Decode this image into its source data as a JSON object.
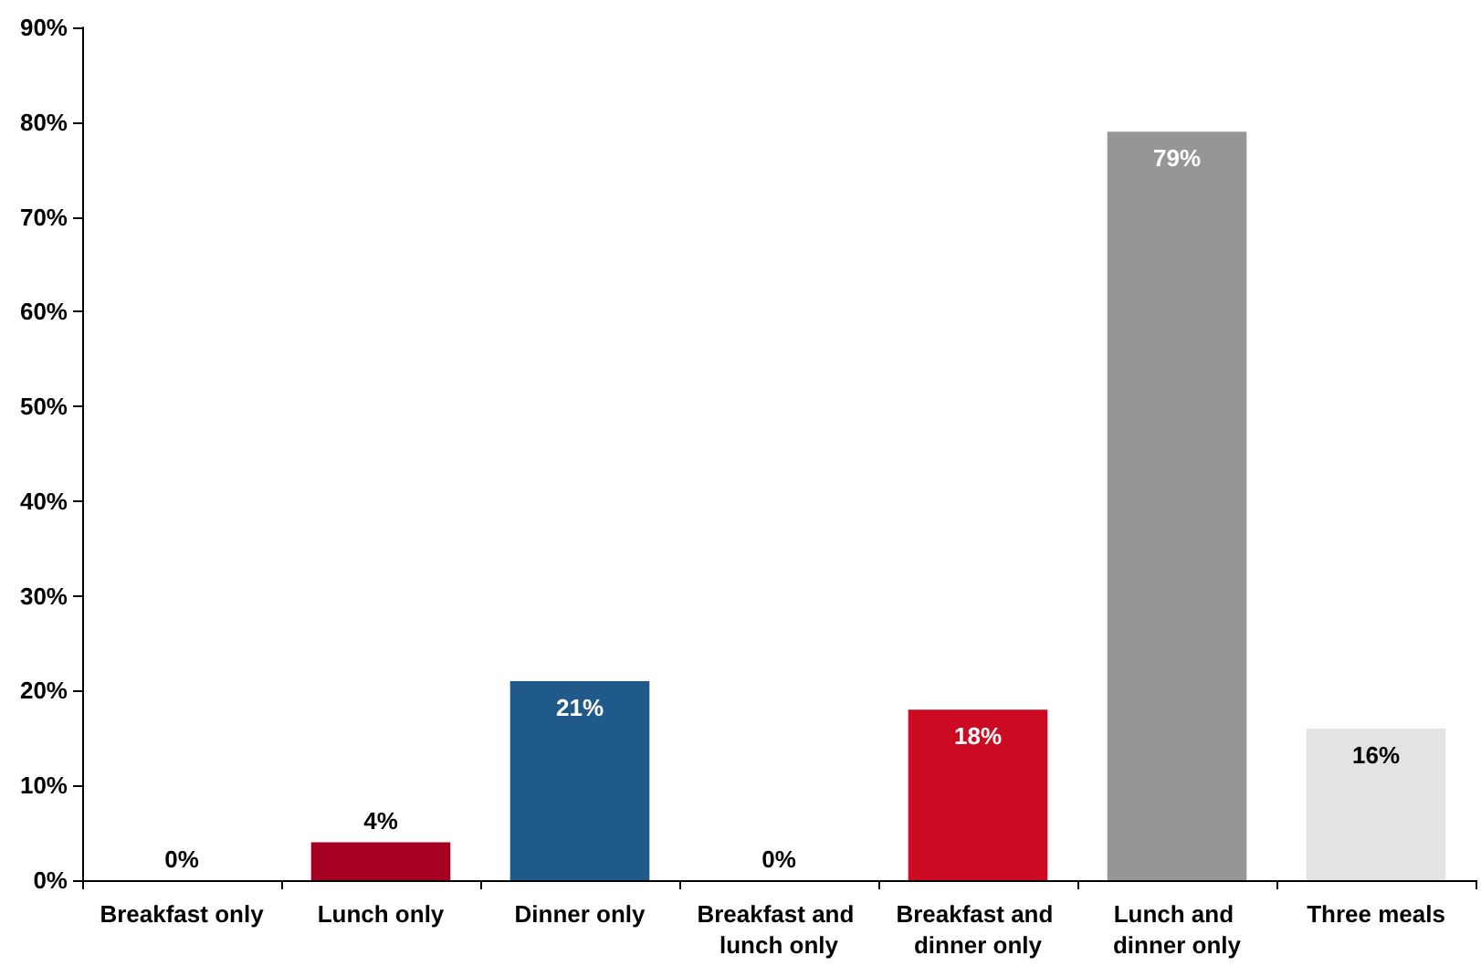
{
  "chart_data": {
    "type": "bar",
    "categories": [
      "Breakfast only",
      "Lunch only",
      "Dinner only",
      "Breakfast and lunch only",
      "Breakfast and dinner only",
      "Lunch and dinner only",
      "Three meals"
    ],
    "values": [
      0,
      4,
      21,
      0,
      18,
      79,
      16
    ],
    "colors": [
      "#000000",
      "#a50021",
      "#1f5a8a",
      "#000000",
      "#cc0a22",
      "#969696",
      "#e3e3e3"
    ],
    "value_labels": [
      "0%",
      "4%",
      "21%",
      "0%",
      "18%",
      "79%",
      "16%"
    ],
    "ylim": [
      0,
      90
    ],
    "yticks": [
      {
        "value": 0,
        "label": "0%"
      },
      {
        "value": 10,
        "label": "10%"
      },
      {
        "value": 20,
        "label": "20%"
      },
      {
        "value": 30,
        "label": "30%"
      },
      {
        "value": 40,
        "label": "40%"
      },
      {
        "value": 50,
        "label": "50%"
      },
      {
        "value": 60,
        "label": "60%"
      },
      {
        "value": 70,
        "label": "70%"
      },
      {
        "value": 80,
        "label": "80%"
      },
      {
        "value": 90,
        "label": "90%"
      }
    ],
    "grid": false
  }
}
